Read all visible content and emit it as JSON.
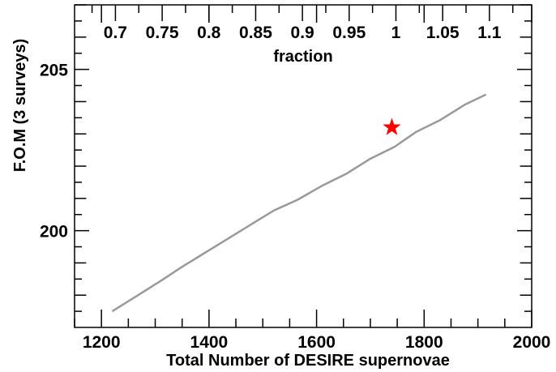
{
  "chart_data": {
    "type": "line",
    "title": "",
    "xlabel": "Total Number of DESIRE supernovae",
    "ylabel": "F.O.M (3 surveys)",
    "top_xlabel": "fraction",
    "xlim": [
      1150,
      2000
    ],
    "ylim": [
      197,
      207
    ],
    "top_xlim": [
      0.6563,
      1.1452
    ],
    "x_ticks": [
      1200,
      1400,
      1600,
      1800,
      2000
    ],
    "y_ticks": [
      200,
      205
    ],
    "top_x_ticks": [
      0.7,
      0.75,
      0.8,
      0.85,
      0.9,
      0.95,
      1,
      1.05,
      1.1
    ],
    "x_tick_labels": [
      "1200",
      "1400",
      "1600",
      "1800",
      "2000"
    ],
    "y_tick_labels": [
      "200",
      "205"
    ],
    "top_x_tick_labels": [
      "0.7",
      "0.75",
      "0.8",
      "0.85",
      "0.9",
      "0.95",
      "1",
      "1.05",
      "1.1"
    ],
    "grid": false,
    "series": [
      {
        "color": "#999999",
        "x": [
          1220,
          1265,
          1310,
          1350,
          1395,
          1440,
          1480,
          1520,
          1565,
          1610,
          1655,
          1700,
          1745,
          1785,
          1830,
          1875,
          1915
        ],
        "y": [
          197.5,
          197.97,
          198.44,
          198.88,
          199.34,
          199.8,
          200.21,
          200.62,
          200.96,
          201.39,
          201.76,
          202.23,
          202.6,
          203.06,
          203.43,
          203.9,
          204.22
        ]
      }
    ],
    "marker": {
      "x": 1740,
      "y": 203.2,
      "shape": "star",
      "color": "#ff0000"
    }
  }
}
